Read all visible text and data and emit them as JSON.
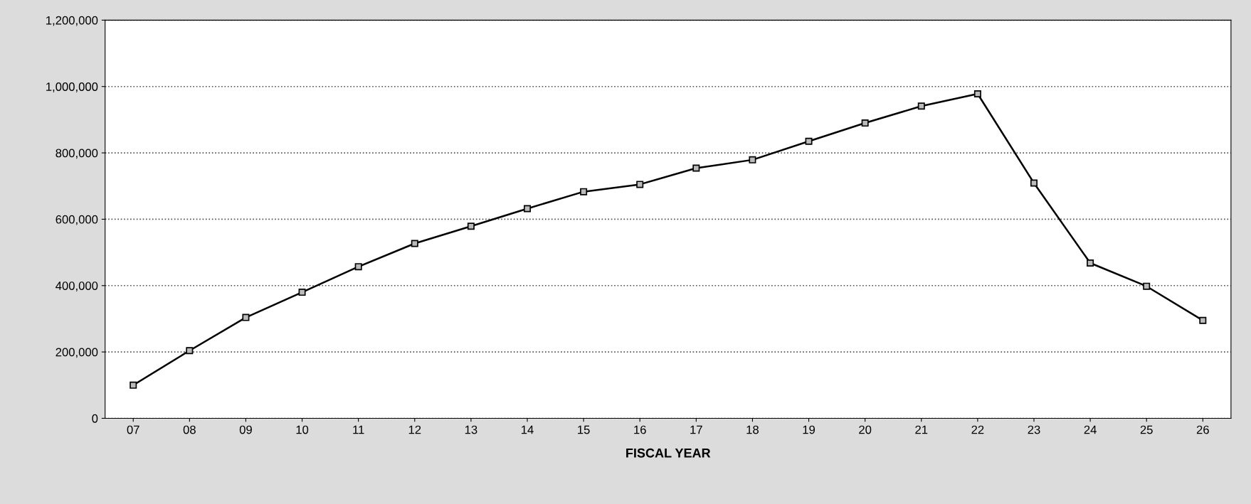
{
  "chart_data": {
    "type": "line",
    "xlabel": "FISCAL YEAR",
    "categories": [
      "07",
      "08",
      "09",
      "10",
      "11",
      "12",
      "13",
      "14",
      "15",
      "16",
      "17",
      "18",
      "19",
      "20",
      "21",
      "22",
      "23",
      "24",
      "25",
      "26"
    ],
    "series": [
      {
        "color": "#000000",
        "values": [
          100000,
          204000,
          304000,
          380000,
          457000,
          527000,
          579000,
          632000,
          683000,
          705000,
          754000,
          779000,
          835000,
          890000,
          941000,
          978000,
          709000,
          468000,
          398000,
          295000
        ]
      }
    ],
    "ylim": [
      0,
      1200000
    ],
    "yticks": [
      {
        "value": 0,
        "label": "0"
      },
      {
        "value": 200000,
        "label": "200,000"
      },
      {
        "value": 400000,
        "label": "400,000"
      },
      {
        "value": 600000,
        "label": "600,000"
      },
      {
        "value": 800000,
        "label": "800,000"
      },
      {
        "value": 1000000,
        "label": "1,000,000"
      },
      {
        "value": 1200000,
        "label": "1,200,000"
      }
    ],
    "grid": "y",
    "marker": "square",
    "line_style": "solid",
    "legend": false
  }
}
